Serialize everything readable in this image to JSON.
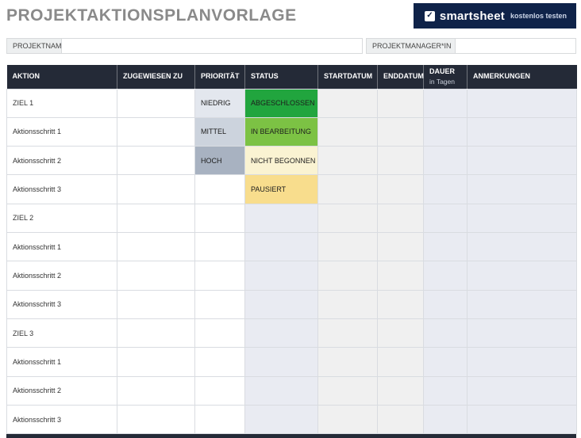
{
  "page": {
    "title": "PROJEKTAKTIONSPLANVORLAGE"
  },
  "brand": {
    "name": "smartsheet",
    "tagline": "kostenlos testen"
  },
  "fields": {
    "project_name_label": "PROJEKTNAME",
    "project_name_value": "",
    "project_manager_label": "PROJEKTMANAGER*IN",
    "project_manager_value": ""
  },
  "table": {
    "columns": [
      {
        "key": "aktion",
        "label": "AKTION"
      },
      {
        "key": "zugewiesen",
        "label": "ZUGEWIESEN ZU"
      },
      {
        "key": "prioritaet",
        "label": "PRIORITÄT"
      },
      {
        "key": "status",
        "label": "STATUS"
      },
      {
        "key": "startdatum",
        "label": "STARTDATUM"
      },
      {
        "key": "enddatum",
        "label": "ENDDATUM"
      },
      {
        "key": "dauer",
        "label": "DAUER",
        "sublabel": "in Tagen"
      },
      {
        "key": "anmerkungen",
        "label": "ANMERKUNGEN"
      }
    ],
    "rows": [
      {
        "aktion": "ZIEL 1",
        "zugewiesen": "",
        "prioritaet": "NIEDRIG",
        "prioritaet_bg": "#e3e7ee",
        "status": "ABGESCHLOSSEN",
        "status_bg": "#21a53e",
        "startdatum": "",
        "enddatum": "",
        "dauer": "",
        "anmerkungen": ""
      },
      {
        "aktion": "Aktionsschritt 1",
        "zugewiesen": "",
        "prioritaet": "MITTEL",
        "prioritaet_bg": "#ccd3dd",
        "status": "IN BEARBEITUNG",
        "status_bg": "#7cc244",
        "startdatum": "",
        "enddatum": "",
        "dauer": "",
        "anmerkungen": ""
      },
      {
        "aktion": "Aktionsschritt 2",
        "zugewiesen": "",
        "prioritaet": "HOCH",
        "prioritaet_bg": "#a8b2c1",
        "status": "NICHT BEGONNEN",
        "status_bg": "#faf3d2",
        "startdatum": "",
        "enddatum": "",
        "dauer": "",
        "anmerkungen": ""
      },
      {
        "aktion": "Aktionsschritt 3",
        "zugewiesen": "",
        "prioritaet": "",
        "status": "PAUSIERT",
        "status_bg": "#f8dd8d",
        "startdatum": "",
        "enddatum": "",
        "dauer": "",
        "anmerkungen": ""
      },
      {
        "aktion": "ZIEL 2",
        "zugewiesen": "",
        "prioritaet": "",
        "status": "",
        "startdatum": "",
        "enddatum": "",
        "dauer": "",
        "anmerkungen": ""
      },
      {
        "aktion": "Aktionsschritt 1",
        "zugewiesen": "",
        "prioritaet": "",
        "status": "",
        "startdatum": "",
        "enddatum": "",
        "dauer": "",
        "anmerkungen": ""
      },
      {
        "aktion": "Aktionsschritt 2",
        "zugewiesen": "",
        "prioritaet": "",
        "status": "",
        "startdatum": "",
        "enddatum": "",
        "dauer": "",
        "anmerkungen": ""
      },
      {
        "aktion": "Aktionsschritt 3",
        "zugewiesen": "",
        "prioritaet": "",
        "status": "",
        "startdatum": "",
        "enddatum": "",
        "dauer": "",
        "anmerkungen": ""
      },
      {
        "aktion": "ZIEL 3",
        "zugewiesen": "",
        "prioritaet": "",
        "status": "",
        "startdatum": "",
        "enddatum": "",
        "dauer": "",
        "anmerkungen": ""
      },
      {
        "aktion": "Aktionsschritt 1",
        "zugewiesen": "",
        "prioritaet": "",
        "status": "",
        "startdatum": "",
        "enddatum": "",
        "dauer": "",
        "anmerkungen": ""
      },
      {
        "aktion": "Aktionsschritt 2",
        "zugewiesen": "",
        "prioritaet": "",
        "status": "",
        "startdatum": "",
        "enddatum": "",
        "dauer": "",
        "anmerkungen": ""
      },
      {
        "aktion": "Aktionsschritt 3",
        "zugewiesen": "",
        "prioritaet": "",
        "status": "",
        "startdatum": "",
        "enddatum": "",
        "dauer": "",
        "anmerkungen": ""
      }
    ]
  },
  "colors": {
    "header_bg": "#242a37",
    "brand_bg": "#0f2349",
    "grid_line": "#d9dce1",
    "cell_light_gray": "#f0f0f0",
    "cell_light_blue": "#e9ebf2",
    "label_bg": "#edeff0",
    "title_text": "#8a8a8a",
    "status_abgeschlossen": "#21a53e",
    "status_in_bearbeitung": "#7cc244",
    "status_nicht_begonnen": "#faf3d2",
    "status_pausiert": "#f8dd8d",
    "prio_niedrig": "#e3e7ee",
    "prio_mittel": "#ccd3dd",
    "prio_hoch": "#a8b2c1"
  }
}
